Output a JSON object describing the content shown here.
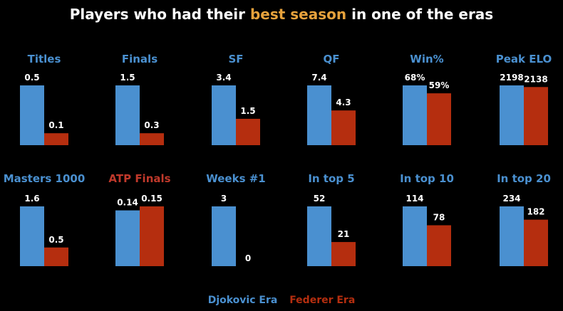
{
  "title": {
    "prefix": "Players who had their ",
    "highlight": "best season",
    "suffix": " in one of the eras"
  },
  "colors": {
    "djokovic": "#4a90d0",
    "federer": "#b52e0f",
    "highlight": "#e6a23c",
    "metric_title_blue": "#4a90d0",
    "metric_title_red": "#c0392b"
  },
  "legend": {
    "djokovic": "Djokovic Era",
    "federer": "Federer Era"
  },
  "chart_data": [
    {
      "type": "bar",
      "title": "Titles",
      "title_color": "blue",
      "series": [
        {
          "name": "Djokovic Era",
          "values": [
            0.5
          ],
          "labels": [
            "0.5"
          ]
        },
        {
          "name": "Federer Era",
          "values": [
            0.1
          ],
          "labels": [
            "0.1"
          ]
        }
      ],
      "ylim": [
        0,
        0.5
      ]
    },
    {
      "type": "bar",
      "title": "Finals",
      "title_color": "blue",
      "series": [
        {
          "name": "Djokovic Era",
          "values": [
            1.5
          ],
          "labels": [
            "1.5"
          ]
        },
        {
          "name": "Federer Era",
          "values": [
            0.3
          ],
          "labels": [
            "0.3"
          ]
        }
      ],
      "ylim": [
        0,
        1.5
      ]
    },
    {
      "type": "bar",
      "title": "SF",
      "title_color": "blue",
      "series": [
        {
          "name": "Djokovic Era",
          "values": [
            3.4
          ],
          "labels": [
            "3.4"
          ]
        },
        {
          "name": "Federer Era",
          "values": [
            1.5
          ],
          "labels": [
            "1.5"
          ]
        }
      ],
      "ylim": [
        0,
        3.4
      ]
    },
    {
      "type": "bar",
      "title": "QF",
      "title_color": "blue",
      "series": [
        {
          "name": "Djokovic Era",
          "values": [
            7.4
          ],
          "labels": [
            "7.4"
          ]
        },
        {
          "name": "Federer Era",
          "values": [
            4.3
          ],
          "labels": [
            "4.3"
          ]
        }
      ],
      "ylim": [
        0,
        7.4
      ]
    },
    {
      "type": "bar",
      "title": "Win%",
      "title_color": "blue",
      "series": [
        {
          "name": "Djokovic Era",
          "values": [
            68
          ],
          "labels": [
            "68%"
          ]
        },
        {
          "name": "Federer Era",
          "values": [
            59
          ],
          "labels": [
            "59%"
          ]
        }
      ],
      "ylim": [
        0,
        68
      ]
    },
    {
      "type": "bar",
      "title": "Peak ELO",
      "title_color": "blue",
      "series": [
        {
          "name": "Djokovic Era",
          "values": [
            2198
          ],
          "labels": [
            "2198"
          ]
        },
        {
          "name": "Federer Era",
          "values": [
            2138
          ],
          "labels": [
            "2138"
          ]
        }
      ],
      "ylim": [
        0,
        2198
      ]
    },
    {
      "type": "bar",
      "title": "Masters 1000",
      "title_color": "blue",
      "series": [
        {
          "name": "Djokovic Era",
          "values": [
            1.6
          ],
          "labels": [
            "1.6"
          ]
        },
        {
          "name": "Federer Era",
          "values": [
            0.5
          ],
          "labels": [
            "0.5"
          ]
        }
      ],
      "ylim": [
        0,
        1.6
      ]
    },
    {
      "type": "bar",
      "title": "ATP Finals",
      "title_color": "red",
      "series": [
        {
          "name": "Djokovic Era",
          "values": [
            0.14
          ],
          "labels": [
            "0.14"
          ]
        },
        {
          "name": "Federer Era",
          "values": [
            0.15
          ],
          "labels": [
            "0.15"
          ]
        }
      ],
      "ylim": [
        0,
        0.15
      ]
    },
    {
      "type": "bar",
      "title": "Weeks #1",
      "title_color": "blue",
      "series": [
        {
          "name": "Djokovic Era",
          "values": [
            3
          ],
          "labels": [
            "3"
          ]
        },
        {
          "name": "Federer Era",
          "values": [
            0
          ],
          "labels": [
            "0"
          ]
        }
      ],
      "ylim": [
        0,
        3
      ]
    },
    {
      "type": "bar",
      "title": "In top 5",
      "title_color": "blue",
      "series": [
        {
          "name": "Djokovic Era",
          "values": [
            52
          ],
          "labels": [
            "52"
          ]
        },
        {
          "name": "Federer Era",
          "values": [
            21
          ],
          "labels": [
            "21"
          ]
        }
      ],
      "ylim": [
        0,
        52
      ]
    },
    {
      "type": "bar",
      "title": "In top 10",
      "title_color": "blue",
      "series": [
        {
          "name": "Djokovic Era",
          "values": [
            114
          ],
          "labels": [
            "114"
          ]
        },
        {
          "name": "Federer Era",
          "values": [
            78
          ],
          "labels": [
            "78"
          ]
        }
      ],
      "ylim": [
        0,
        114
      ]
    },
    {
      "type": "bar",
      "title": "In top 20",
      "title_color": "blue",
      "series": [
        {
          "name": "Djokovic Era",
          "values": [
            234
          ],
          "labels": [
            "234"
          ]
        },
        {
          "name": "Federer Era",
          "values": [
            182
          ],
          "labels": [
            "182"
          ]
        }
      ],
      "ylim": [
        0,
        234
      ]
    }
  ]
}
